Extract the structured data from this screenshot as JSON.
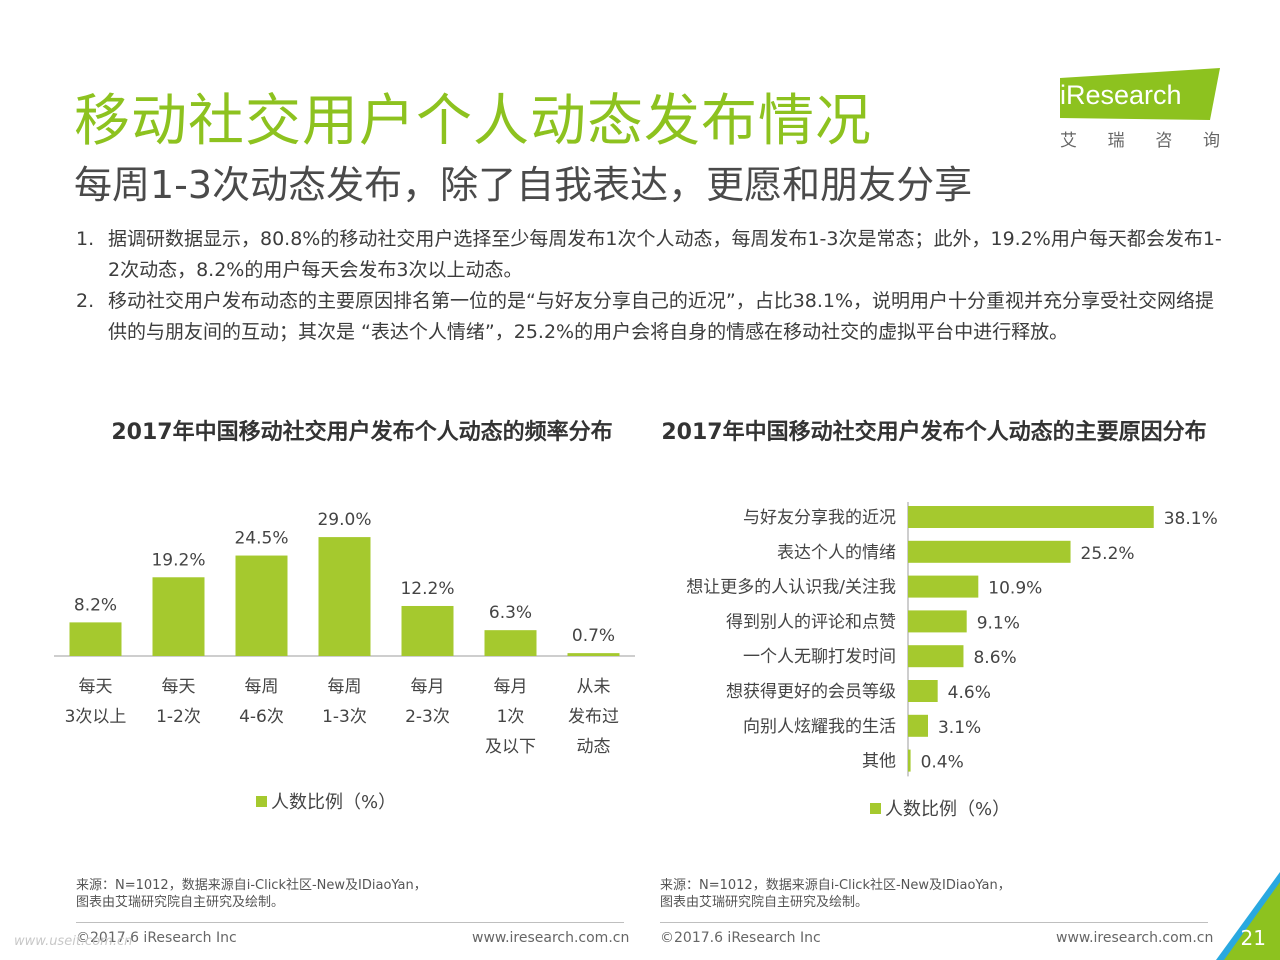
{
  "header": {
    "title": "移动社交用户个人动态发布情况",
    "subtitle": "每周1-3次动态发布，除了自我表达，更愿和朋友分享"
  },
  "logo": {
    "brand_i": "i",
    "brand_rest": "Research",
    "chars": [
      "艾",
      "瑞",
      "咨",
      "询"
    ],
    "color": "#8dc21f"
  },
  "bullets": [
    {
      "num": "1.",
      "text": "据调研数据显示，80.8%的移动社交用户选择至少每周发布1次个人动态，每周发布1-3次是常态；此外，19.2%用户每天都会发布1-2次动态，8.2%的用户每天会发布3次以上动态。"
    },
    {
      "num": "2.",
      "text": "移动社交用户发布动态的主要原因排名第一位的是“与好友分享自己的近况”，占比38.1%，说明用户十分重视并充分享受社交网络提供的与朋友间的互动；其次是 “表达个人情绪”，25.2%的用户会将自身的情感在移动社交的虚拟平台中进行释放。"
    }
  ],
  "chart_data": [
    {
      "type": "bar",
      "title": "2017年中国移动社交用户发布个人动态的频率分布",
      "categories": [
        "每天\n3次以上",
        "每天\n1-2次",
        "每周\n4-6次",
        "每周\n1-3次",
        "每月\n2-3次",
        "每月\n1次\n及以下",
        "从未\n发布过\n动态"
      ],
      "series": [
        {
          "name": "人数比例（%）",
          "values": [
            8.2,
            19.2,
            24.5,
            29.0,
            12.2,
            6.3,
            0.7
          ]
        }
      ],
      "value_labels": [
        "8.2%",
        "19.2%",
        "24.5%",
        "29.0%",
        "12.2%",
        "6.3%",
        "0.7%"
      ],
      "legend": "bottom-center",
      "color": "#a5c92e"
    },
    {
      "type": "bar",
      "orientation": "horizontal",
      "title": "2017年中国移动社交用户发布个人动态的主要原因分布",
      "categories": [
        "与好友分享我的近况",
        "表达个人的情绪",
        "想让更多的人认识我/关注我",
        "得到别人的评论和点赞",
        "一个人无聊打发时间",
        "想获得更好的会员等级",
        "向别人炫耀我的生活",
        "其他"
      ],
      "series": [
        {
          "name": "人数比例（%）",
          "values": [
            38.1,
            25.2,
            10.9,
            9.1,
            8.6,
            4.6,
            3.1,
            0.4
          ]
        }
      ],
      "value_labels": [
        "38.1%",
        "25.2%",
        "10.9%",
        "9.1%",
        "8.6%",
        "4.6%",
        "3.1%",
        "0.4%"
      ],
      "legend": "bottom-center",
      "color": "#a5c92e"
    }
  ],
  "sources": {
    "left": "来源：N=1012，数据来源自i-Click社区-New及IDiaoYan，\n图表由艾瑞研究院自主研究及绘制。",
    "right": "来源：N=1012，数据来源自i-Click社区-New及IDiaoYan，\n图表由艾瑞研究院自主研究及绘制。"
  },
  "footer": {
    "copyright_left": "©2017.6 iResearch Inc",
    "url_left": "www.iresearch.com.cn",
    "copyright_right": "©2017.6 iResearch Inc",
    "url_right": "www.iresearch.com.cn",
    "page_number": "21",
    "watermark": "www.useit.com.cn"
  }
}
